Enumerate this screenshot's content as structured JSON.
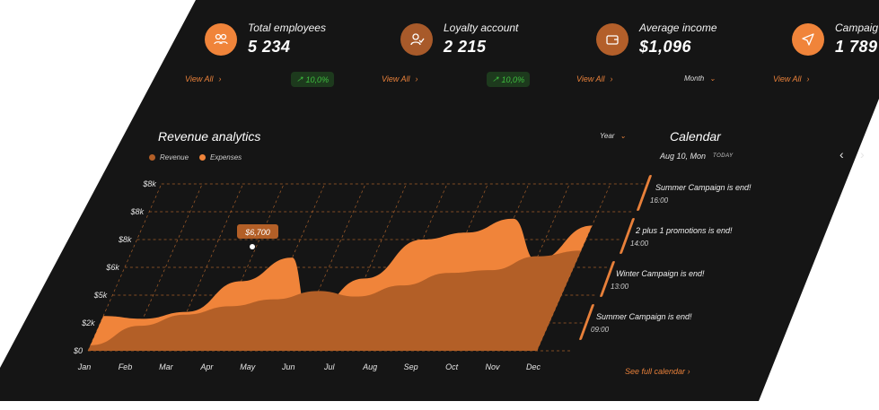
{
  "stats": [
    {
      "label": "Total employees",
      "value": "5 234",
      "icon": "users-icon",
      "color": "#f0843a"
    },
    {
      "label": "Loyalty account",
      "value": "2 215",
      "icon": "user-check-icon",
      "color": "#a85a2a"
    },
    {
      "label": "Average income",
      "value": "$1,096",
      "icon": "wallet-icon",
      "color": "#b35f2a"
    },
    {
      "label": "Campaig",
      "value": "1 789",
      "icon": "send-icon",
      "color": "#f0843a"
    }
  ],
  "links": {
    "view_all": "View All",
    "growth": "10,0%",
    "month": "Month",
    "year": "Year"
  },
  "revenue": {
    "title": "Revenue analytics",
    "legend": [
      "Revenue",
      "Expenses"
    ],
    "tooltip": "$6,700"
  },
  "chart_data": {
    "type": "area",
    "categories": [
      "Jan",
      "Feb",
      "Mar",
      "Apr",
      "May",
      "Jun",
      "Jul",
      "Aug",
      "Sep",
      "Oct",
      "Nov",
      "Dec"
    ],
    "y_ticks": [
      "$0",
      "$2k",
      "$5k",
      "$6k",
      "$8k",
      "$8k",
      "$8k"
    ],
    "ylim": [
      0,
      12000
    ],
    "series": [
      {
        "name": "Revenue",
        "color": "#b35f27",
        "values": [
          400,
          1800,
          2600,
          3200,
          3700,
          4300,
          3900,
          4700,
          5600,
          5800,
          6800,
          7200
        ]
      },
      {
        "name": "Expenses",
        "color": "#f0843a",
        "values": [
          2500,
          2300,
          2800,
          5000,
          6700,
          2600,
          5200,
          8000,
          8500,
          9500,
          6500,
          9000
        ]
      }
    ],
    "grid": true,
    "legend_position": "top-left"
  },
  "calendar": {
    "title": "Calendar",
    "date": "Aug 10, Mon",
    "today": "TODAY",
    "events": [
      {
        "title": "Summer Campaign is end!",
        "time": "16:00"
      },
      {
        "title": "2 plus 1 promotions is end!",
        "time": "14:00"
      },
      {
        "title": "Winter Campaign is end!",
        "time": "13:00"
      },
      {
        "title": "Summer Campaign is end!",
        "time": "09:00"
      }
    ],
    "link": "See full calendar"
  }
}
